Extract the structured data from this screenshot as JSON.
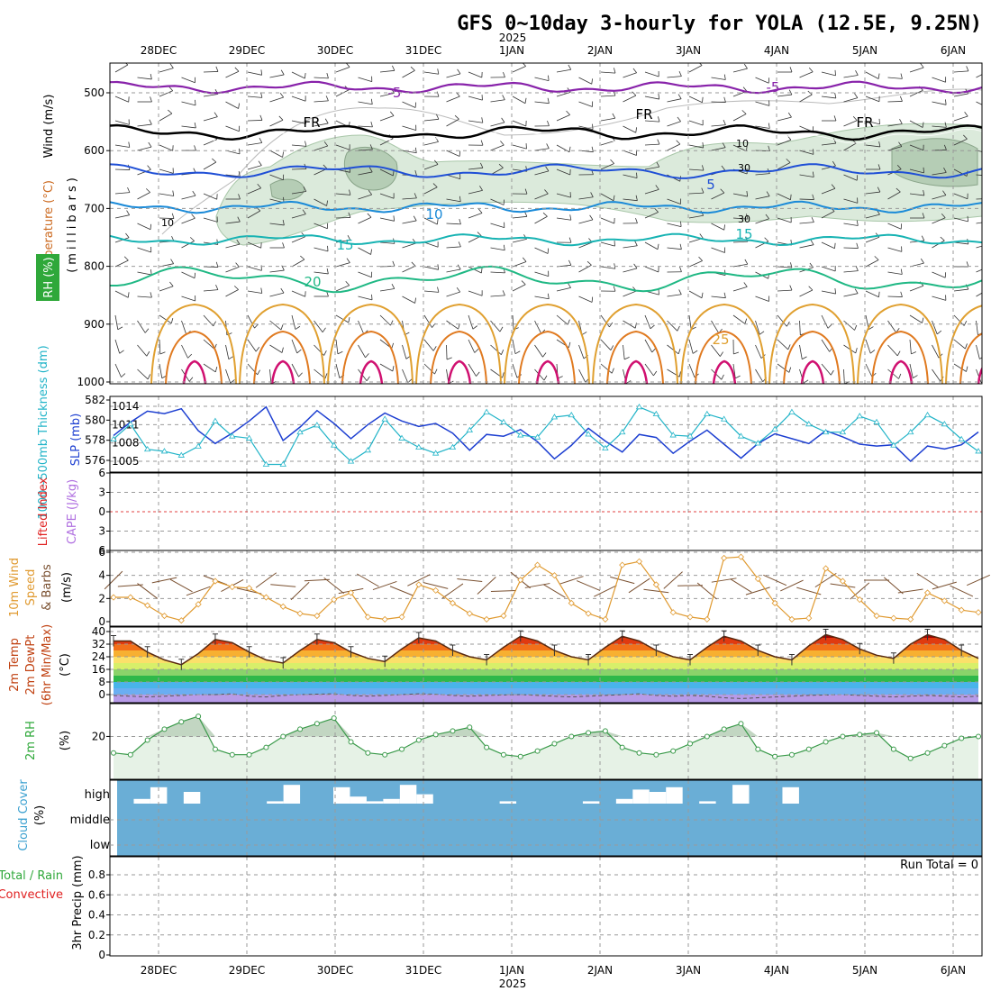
{
  "title": "GFS 0~10day 3-hourly for YOLA (12.5E, 9.25N)",
  "year_label": "2025",
  "date_labels": [
    "28DEC",
    "29DEC",
    "30DEC",
    "31DEC",
    "1JAN",
    "2JAN",
    "3JAN",
    "4JAN",
    "5JAN",
    "6JAN"
  ],
  "colors": {
    "temp_m5": "#8822aa",
    "temp_0": "#000000",
    "temp_5": "#1f4fd6",
    "temp_10": "#1a8ad8",
    "temp_15": "#17b3b3",
    "temp_20": "#1fb884",
    "temp_25": "#e0a030",
    "temp_30": "#e07a20",
    "temp_35": "#d01070",
    "rh_fill": "#d6e9d6",
    "rh_dark": "#9fbf9f",
    "slp": "#1d3fd1",
    "thickness": "#22b4c8",
    "wind10": "#e09a30",
    "barb": "#7a5030",
    "cloud": "#6aaed6"
  },
  "chart_data": [
    {
      "name": "upper-air-cross-section",
      "type": "contour",
      "ylabel_units": "(millibars)",
      "ylabels": {
        "wind": "Wind (m/s)",
        "temperature": "Temperature (°C)",
        "rh": "RH (%)"
      },
      "pressure_ticks": [
        500,
        600,
        700,
        800,
        900,
        1000
      ],
      "contour_labels": [
        {
          "text": "-5"
        },
        {
          "text": "-5"
        },
        {
          "text": "FR"
        },
        {
          "text": "FR"
        },
        {
          "text": "FR"
        },
        {
          "text": "5"
        },
        {
          "text": "10"
        },
        {
          "text": "15"
        },
        {
          "text": "15"
        },
        {
          "text": "20"
        },
        {
          "text": "25"
        },
        {
          "text": "10"
        },
        {
          "text": "10"
        },
        {
          "text": "30"
        },
        {
          "text": "30"
        }
      ]
    },
    {
      "name": "slp-thickness",
      "type": "line",
      "ylabels": {
        "left": "1000~500mb Thickness (dm)",
        "right": "SLP (mb)"
      },
      "left_ticks": [
        576,
        578,
        580,
        582
      ],
      "right_ticks": [
        1005,
        1008,
        1011,
        1014
      ],
      "series": [
        {
          "name": "SLP (mb)",
          "values": [
            1009.2,
            1011.4,
            1013.2,
            1012.8,
            1013.6,
            1010.0,
            1007.9,
            1009.6,
            1011.6,
            1013.9,
            1008.4,
            1010.6,
            1013.3,
            1011.2,
            1008.7,
            1011.0,
            1012.9,
            1011.6,
            1010.7,
            1011.2,
            1009.6,
            1006.8,
            1009.4,
            1009.1,
            1010.2,
            1008.2,
            1005.4,
            1007.6,
            1010.4,
            1008.3,
            1006.5,
            1009.4,
            1008.9,
            1006.3,
            1008.3,
            1010.1,
            1007.8,
            1005.5,
            1007.9,
            1009.5,
            1008.7,
            1007.9,
            1010.0,
            1009.0,
            1007.8,
            1007.5,
            1007.7,
            1005.0,
            1007.5,
            1007.0,
            1007.7,
            1009.8
          ]
        },
        {
          "name": "1000-500mb Thickness (dm)",
          "values": [
            578.1,
            579.6,
            577.1,
            576.9,
            576.5,
            577.4,
            579.9,
            578.4,
            578.2,
            575.6,
            575.6,
            578.8,
            579.5,
            577.5,
            575.9,
            577.0,
            580.1,
            578.2,
            577.3,
            576.7,
            577.3,
            579.0,
            580.8,
            579.8,
            578.5,
            578.3,
            580.3,
            580.5,
            578.6,
            577.2,
            578.8,
            581.3,
            580.6,
            578.5,
            578.4,
            580.6,
            580.1,
            578.4,
            577.7,
            579.1,
            580.8,
            579.6,
            578.8,
            578.8,
            580.4,
            579.8,
            577.5,
            578.8,
            580.5,
            579.6,
            578.1,
            576.9
          ]
        }
      ]
    },
    {
      "name": "cape-lifted-index",
      "type": "line",
      "ylabels": {
        "cape": "CAPE (J/kg)",
        "li": "Lifted Index"
      },
      "li_ticks": [
        -6,
        -3,
        0,
        3,
        6
      ],
      "li_tick_labels": [
        "6",
        "3",
        "0",
        "3",
        "6"
      ],
      "series": []
    },
    {
      "name": "wind10m",
      "type": "line",
      "ylabel": "10m Wind Speed & Barbs (m/s)",
      "ylabel_parts": [
        "10m Wind",
        "Speed",
        "& Barbs",
        "(m/s)"
      ],
      "ylim": [
        0,
        6
      ],
      "yticks": [
        0,
        2,
        4,
        6
      ],
      "series": [
        {
          "name": "speed",
          "values": [
            2.1,
            2.1,
            1.4,
            0.5,
            0.1,
            1.5,
            3.5,
            3.0,
            2.9,
            2.1,
            1.3,
            0.7,
            0.5,
            1.9,
            2.5,
            0.4,
            0.2,
            0.4,
            3.2,
            2.7,
            1.6,
            0.7,
            0.2,
            0.5,
            3.6,
            4.9,
            4.0,
            1.6,
            0.7,
            0.2,
            4.9,
            5.2,
            3.2,
            0.8,
            0.4,
            0.2,
            5.5,
            5.6,
            3.7,
            1.6,
            0.2,
            0.3,
            4.6,
            3.5,
            1.9,
            0.5,
            0.3,
            0.2,
            2.5,
            1.8,
            1.0,
            0.8
          ]
        }
      ]
    },
    {
      "name": "temp2m",
      "type": "area",
      "ylabel": "2m Temp 2m DewPt (6hr Min/Max) (°C)",
      "ylabel_parts": [
        "2m Temp",
        "2m DewPt",
        "(6hr Min/Max)",
        "(°C)"
      ],
      "ylim": [
        -4,
        40
      ],
      "yticks": [
        0,
        8,
        16,
        24,
        32,
        40
      ],
      "series": [
        {
          "name": "2m Temp",
          "values": [
            34,
            34,
            27,
            22,
            19,
            26,
            35,
            33,
            27,
            22,
            20,
            28,
            35,
            33,
            27,
            23,
            21,
            29,
            36,
            34,
            28,
            24,
            22,
            30,
            37,
            34,
            28,
            24,
            22,
            30,
            37,
            34,
            28,
            24,
            22,
            30,
            37,
            34,
            28,
            24,
            22,
            31,
            38,
            35,
            29,
            25,
            23,
            32,
            38,
            35,
            28,
            23
          ]
        },
        {
          "name": "2m DewPt",
          "values": [
            -0.5,
            -1,
            -1.5,
            -1,
            -0.5,
            0,
            0,
            0.5,
            -1,
            -1.5,
            -0.5,
            0,
            0.3,
            0.5,
            -0.5,
            -1,
            -0.5,
            0,
            0.5,
            0.3,
            -0.5,
            -1,
            -0.5,
            -0.2,
            0,
            -0.5,
            -1,
            -1.5,
            -1,
            -0.5,
            0,
            0.5,
            -0.5,
            -1,
            -0.5,
            -1,
            -2,
            -2.5,
            -2,
            -1.5,
            -1,
            -0.5,
            -0.2,
            0,
            -0.5,
            -1,
            -1.5,
            -1,
            -0.5,
            -1,
            -1.5,
            -1
          ]
        }
      ]
    },
    {
      "name": "rh2m",
      "type": "area",
      "ylabel": "2m RH (%)",
      "ylabel_parts": [
        "2m RH",
        "(%)"
      ],
      "ylim": [
        0,
        36
      ],
      "yticks": [
        20
      ],
      "series": [
        {
          "name": "2m RH",
          "values": [
            11,
            10,
            18,
            24,
            28,
            31,
            13,
            10,
            10,
            14,
            20,
            24,
            27,
            30,
            17,
            11,
            10,
            13,
            18,
            21,
            23,
            25,
            14,
            10,
            9,
            12,
            16,
            20,
            22,
            23,
            14,
            11,
            10,
            12,
            16,
            20,
            24,
            27,
            13,
            9,
            10,
            13,
            17,
            20,
            21,
            22,
            13,
            8,
            11,
            15,
            19,
            20
          ]
        }
      ]
    },
    {
      "name": "cloud-cover",
      "type": "bar",
      "ylabel": "Cloud Cover (%)",
      "ylabel_parts": [
        "Cloud Cover",
        "(%)"
      ],
      "levels": [
        "high",
        "middle",
        "low"
      ],
      "series": [
        {
          "name": "high",
          "values": [
            0,
            20,
            70,
            0,
            50,
            0,
            0,
            0,
            0,
            10,
            80,
            0,
            0,
            70,
            30,
            10,
            20,
            80,
            40,
            0,
            0,
            0,
            0,
            10,
            0,
            0,
            0,
            0,
            10,
            0,
            20,
            60,
            50,
            70,
            0,
            10,
            0,
            80,
            0,
            0,
            70,
            0,
            0,
            0,
            0,
            0,
            0,
            0,
            0,
            0,
            0,
            0
          ]
        }
      ]
    },
    {
      "name": "precip",
      "type": "bar",
      "ylabel": "3hr Precip (mm)",
      "ylabel_parts": [
        "Total / Rain",
        "Convective",
        "3hr Precip (mm)"
      ],
      "ylim": [
        0,
        1.0
      ],
      "yticks": [
        0,
        0.2,
        0.4,
        0.6,
        0.8
      ],
      "run_total_label": "Run Total = 0",
      "series": [
        {
          "name": "total",
          "values": []
        }
      ]
    }
  ]
}
